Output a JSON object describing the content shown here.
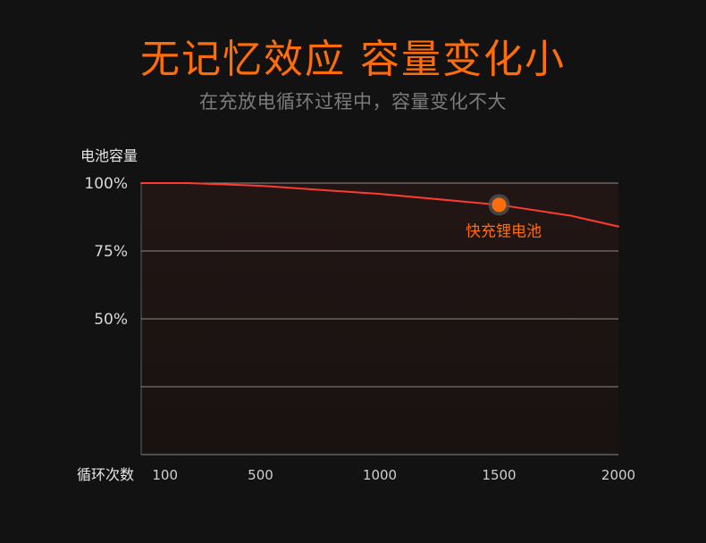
{
  "header": {
    "title": "无记忆效应 容量变化小",
    "subtitle": "在充放电循环过程中，容量变化不大"
  },
  "chart_data": {
    "type": "line",
    "ylabel": "电池容量",
    "xlabel": "循环次数",
    "y_ticks": [
      100,
      75,
      50,
      25,
      0
    ],
    "y_tick_labels": [
      "100%",
      "75%",
      "50%",
      "",
      ""
    ],
    "x_ticks": [
      100,
      500,
      1000,
      1500,
      2000
    ],
    "x_tick_labels": [
      "100",
      "500",
      "1000",
      "1500",
      "2000"
    ],
    "ylim": [
      0,
      100
    ],
    "xlim": [
      0,
      2000
    ],
    "series": [
      {
        "x": [
          0,
          200,
          500,
          1000,
          1500,
          1800,
          2000
        ],
        "y": [
          100,
          100,
          99,
          96,
          92,
          88,
          84
        ]
      }
    ],
    "highlight": {
      "x": 1500,
      "y": 92,
      "label": "快充锂电池"
    }
  },
  "colors": {
    "background": "#121212",
    "plot_background": "#1d1513",
    "grid": "#8b8b8b",
    "series": "#ff3b30",
    "accent": "#ff6d0a"
  }
}
